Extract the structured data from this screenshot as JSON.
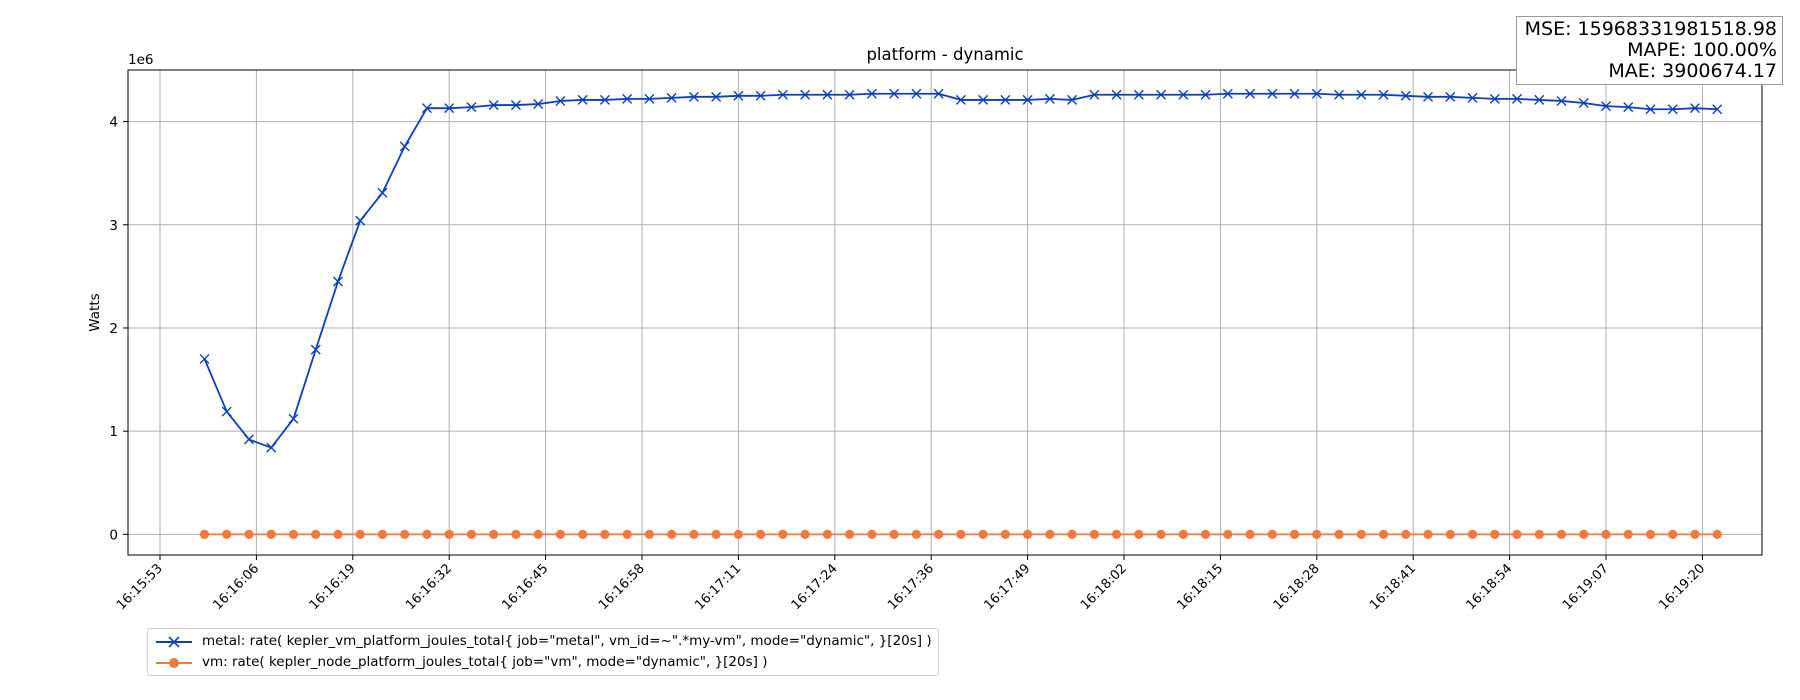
{
  "chart_data": {
    "type": "line",
    "title": "platform - dynamic",
    "xlabel": "",
    "ylabel": "Watts",
    "y_scale_label": "1e6",
    "ylim": [
      -0.2,
      4.5
    ],
    "y_ticks": [
      0,
      1,
      2,
      3,
      4
    ],
    "grid": true,
    "legend_position": "below",
    "x_tick_labels": [
      "16:15:53",
      "16:16:06",
      "16:16:19",
      "16:16:32",
      "16:16:45",
      "16:16:58",
      "16:17:11",
      "16:17:24",
      "16:17:36",
      "16:17:49",
      "16:18:02",
      "16:18:15",
      "16:18:28",
      "16:18:41",
      "16:18:54",
      "16:19:07",
      "16:19:20"
    ],
    "x_sample_interval_s": 3,
    "series": [
      {
        "name": "metal: rate( kepler_vm_platform_joules_total{ job=\"metal\", vm_id=~\".*my-vm\", mode=\"dynamic\", }[20s] )",
        "color": "#0a3fbf",
        "marker": "x",
        "start_time": "16:15:59",
        "values": [
          1.7,
          1.19,
          0.92,
          0.84,
          1.12,
          1.79,
          2.45,
          3.04,
          3.31,
          3.76,
          4.13,
          4.13,
          4.14,
          4.16,
          4.16,
          4.17,
          4.2,
          4.21,
          4.21,
          4.22,
          4.22,
          4.23,
          4.24,
          4.24,
          4.25,
          4.25,
          4.26,
          4.26,
          4.26,
          4.26,
          4.27,
          4.27,
          4.27,
          4.27,
          4.21,
          4.21,
          4.21,
          4.21,
          4.22,
          4.21,
          4.26,
          4.26,
          4.26,
          4.26,
          4.26,
          4.26,
          4.27,
          4.27,
          4.27,
          4.27,
          4.27,
          4.26,
          4.26,
          4.26,
          4.25,
          4.24,
          4.24,
          4.23,
          4.22,
          4.22,
          4.21,
          4.2,
          4.18,
          4.15,
          4.14,
          4.12,
          4.12,
          4.13,
          4.12
        ]
      },
      {
        "name": "vm: rate( kepler_node_platform_joules_total{ job=\"vm\", mode=\"dynamic\", }[20s] )",
        "color": "#f4783c",
        "marker": "o",
        "start_time": "16:15:59",
        "values": [
          0,
          0,
          0,
          0,
          0,
          0,
          0,
          0,
          0,
          0,
          0,
          0,
          0,
          0,
          0,
          0,
          0,
          0,
          0,
          0,
          0,
          0,
          0,
          0,
          0,
          0,
          0,
          0,
          0,
          0,
          0,
          0,
          0,
          0,
          0,
          0,
          0,
          0,
          0,
          0,
          0,
          0,
          0,
          0,
          0,
          0,
          0,
          0,
          0,
          0,
          0,
          0,
          0,
          0,
          0,
          0,
          0,
          0,
          0,
          0,
          0,
          0,
          0,
          0,
          0,
          0,
          0,
          0,
          0
        ]
      }
    ]
  },
  "metrics": {
    "mse": "MSE: 15968331981518.98",
    "mape": "MAPE: 100.00%",
    "mae": "MAE: 3900674.17"
  }
}
